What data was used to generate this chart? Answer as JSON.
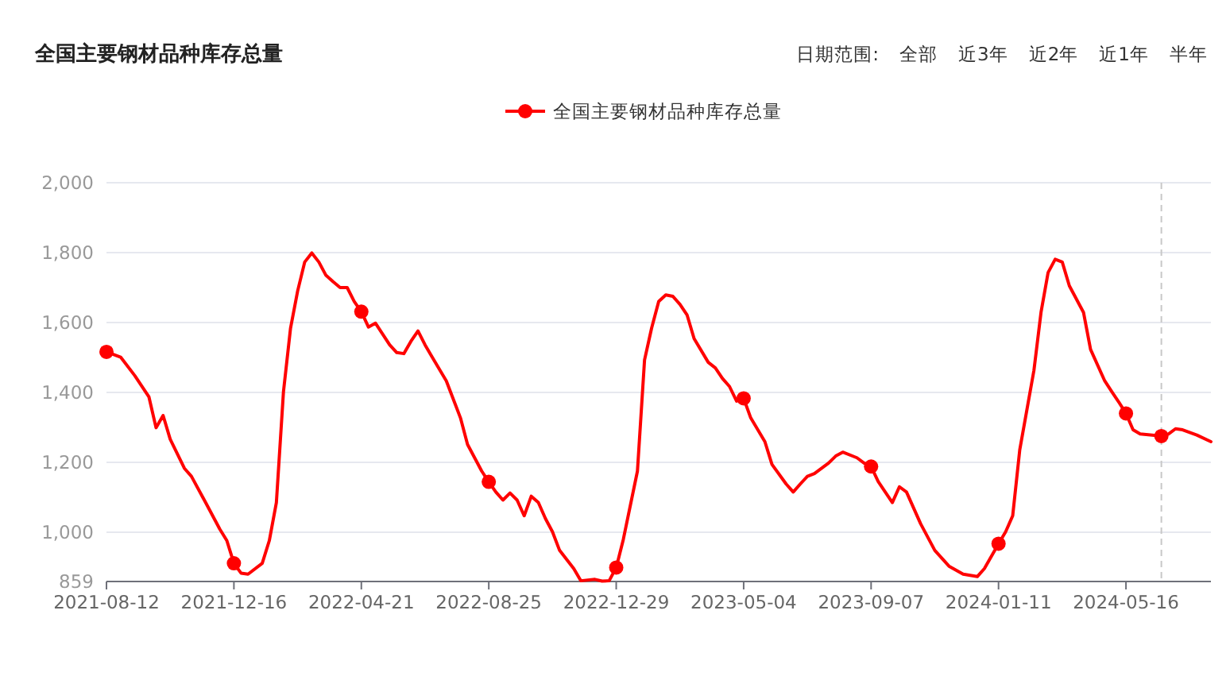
{
  "chart_data": {
    "type": "line",
    "title": "全国主要钢材品种库存总量",
    "annotations": [
      "日期范围:",
      "全部",
      "近3年",
      "近2年",
      "近1年",
      "半年"
    ],
    "legend": "top",
    "grid": "y",
    "line_style": "solid",
    "xlim": [
      "2021-08-12",
      "2024-08-08"
    ],
    "xticks": [
      "2021-08-12",
      "2021-12-16",
      "2022-04-21",
      "2022-08-25",
      "2022-12-29",
      "2023-05-04",
      "2023-09-07",
      "2024-01-11",
      "2024-05-16"
    ],
    "ylim": [
      859,
      2000
    ],
    "yticks": [
      859,
      {
        "value": 1000,
        "label": "1,000"
      },
      {
        "value": 1200,
        "label": "1,200"
      },
      {
        "value": 1400,
        "label": "1,400"
      },
      {
        "value": 1600,
        "label": "1,600"
      },
      {
        "value": 1800,
        "label": "1,800"
      },
      {
        "value": 2000,
        "label": "2,000"
      }
    ],
    "ref_lines": [
      {
        "axis": "x",
        "value": "2024-06-20",
        "color": "#c8c8c8",
        "line_style": "dashed"
      }
    ],
    "series": [
      {
        "name": "全国主要钢材品种库存总量",
        "marker": "none",
        "color": "#ff0000",
        "x": [
          "2021-08-12",
          "2021-08-26",
          "2021-09-09",
          "2021-09-23",
          "2021-09-30",
          "2021-10-07",
          "2021-10-14",
          "2021-10-28",
          "2021-11-04",
          "2021-11-18",
          "2021-12-02",
          "2021-12-09",
          "2021-12-16",
          "2021-12-23",
          "2021-12-30",
          "2022-01-13",
          "2022-01-20",
          "2022-01-27",
          "2022-02-03",
          "2022-02-10",
          "2022-02-17",
          "2022-02-24",
          "2022-03-03",
          "2022-03-10",
          "2022-03-17",
          "2022-03-24",
          "2022-03-31",
          "2022-04-07",
          "2022-04-14",
          "2022-04-21",
          "2022-04-28",
          "2022-05-05",
          "2022-05-19",
          "2022-05-26",
          "2022-06-02",
          "2022-06-09",
          "2022-06-16",
          "2022-06-23",
          "2022-06-30",
          "2022-07-14",
          "2022-07-28",
          "2022-08-04",
          "2022-08-18",
          "2022-08-25",
          "2022-09-01",
          "2022-09-08",
          "2022-09-15",
          "2022-09-22",
          "2022-09-29",
          "2022-10-06",
          "2022-10-13",
          "2022-10-20",
          "2022-10-27",
          "2022-11-03",
          "2022-11-17",
          "2022-11-24",
          "2022-12-08",
          "2022-12-15",
          "2022-12-22",
          "2022-12-29",
          "2023-01-05",
          "2023-01-19",
          "2023-01-26",
          "2023-02-02",
          "2023-02-09",
          "2023-02-16",
          "2023-02-23",
          "2023-03-02",
          "2023-03-09",
          "2023-03-16",
          "2023-03-30",
          "2023-04-06",
          "2023-04-13",
          "2023-04-20",
          "2023-04-27",
          "2023-05-04",
          "2023-05-11",
          "2023-05-25",
          "2023-06-01",
          "2023-06-15",
          "2023-06-22",
          "2023-06-29",
          "2023-07-06",
          "2023-07-13",
          "2023-07-27",
          "2023-08-03",
          "2023-08-10",
          "2023-08-24",
          "2023-08-31",
          "2023-09-07",
          "2023-09-14",
          "2023-09-21",
          "2023-09-28",
          "2023-10-05",
          "2023-10-12",
          "2023-10-26",
          "2023-11-09",
          "2023-11-23",
          "2023-12-07",
          "2023-12-21",
          "2023-12-28",
          "2024-01-11",
          "2024-01-18",
          "2024-01-25",
          "2024-02-01",
          "2024-02-15",
          "2024-02-22",
          "2024-02-29",
          "2024-03-07",
          "2024-03-14",
          "2024-03-21",
          "2024-04-04",
          "2024-04-11",
          "2024-04-25",
          "2024-05-02",
          "2024-05-09",
          "2024-05-16",
          "2024-05-23",
          "2024-05-30",
          "2024-06-13",
          "2024-06-20",
          "2024-06-27",
          "2024-07-04",
          "2024-07-11",
          "2024-07-25",
          "2024-08-08"
        ],
        "values": [
          1516,
          1501,
          1448,
          1387,
          1299,
          1334,
          1266,
          1183,
          1160,
          1085,
          1009,
          976,
          911,
          883,
          880,
          911,
          976,
          1085,
          1402,
          1584,
          1690,
          1773,
          1799,
          1773,
          1735,
          1717,
          1700,
          1700,
          1660,
          1631,
          1587,
          1598,
          1536,
          1514,
          1511,
          1546,
          1576,
          1536,
          1501,
          1433,
          1327,
          1251,
          1175,
          1144,
          1115,
          1092,
          1112,
          1092,
          1047,
          1103,
          1085,
          1039,
          1001,
          948,
          896,
          861,
          865,
          860,
          861,
          899,
          979,
          1175,
          1493,
          1584,
          1660,
          1679,
          1675,
          1652,
          1622,
          1554,
          1486,
          1470,
          1440,
          1417,
          1375,
          1383,
          1327,
          1259,
          1194,
          1138,
          1115,
          1138,
          1160,
          1168,
          1198,
          1218,
          1229,
          1213,
          1198,
          1188,
          1145,
          1115,
          1085,
          1130,
          1115,
          1024,
          948,
          903,
          880,
          873,
          896,
          967,
          1001,
          1047,
          1236,
          1463,
          1629,
          1743,
          1781,
          1773,
          1705,
          1629,
          1523,
          1433,
          1402,
          1372,
          1340,
          1293,
          1281,
          1277,
          1275,
          1281,
          1296,
          1293,
          1278,
          1259
        ]
      },
      {
        "type": "scatter",
        "marker": "circle",
        "color": "#ff0000",
        "x": [
          "2021-08-12",
          "2021-12-16",
          "2022-04-21",
          "2022-08-25",
          "2022-12-29",
          "2023-05-04",
          "2023-09-07",
          "2024-01-11",
          "2024-05-16",
          "2024-06-20"
        ],
        "values": [
          1516,
          911,
          1631,
          1144,
          899,
          1383,
          1188,
          967,
          1340,
          1275
        ]
      }
    ]
  }
}
